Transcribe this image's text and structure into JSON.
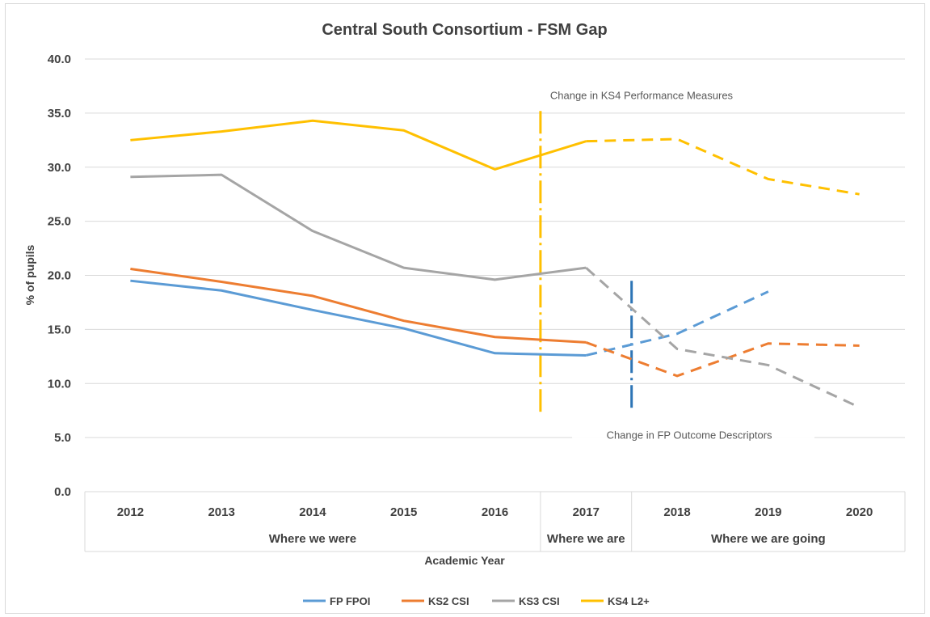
{
  "chart_data": {
    "type": "line",
    "title": "Central South Consortium - FSM Gap",
    "xlabel": "Academic Year",
    "ylabel": "% of pupils",
    "ylim": [
      0,
      40
    ],
    "y_ticks": [
      "0.0",
      "5.0",
      "10.0",
      "15.0",
      "20.0",
      "25.0",
      "30.0",
      "35.0",
      "40.0"
    ],
    "categories": [
      "2012",
      "2013",
      "2014",
      "2015",
      "2016",
      "2017",
      "2018",
      "2019",
      "2020"
    ],
    "category_groups": [
      {
        "label": "Where we were",
        "categories": [
          "2012",
          "2013",
          "2014",
          "2015",
          "2016"
        ]
      },
      {
        "label": "Where we are",
        "categories": [
          "2017"
        ]
      },
      {
        "label": "Where we are going",
        "categories": [
          "2018",
          "2019",
          "2020"
        ]
      }
    ],
    "grid": true,
    "legend_position": "bottom",
    "series": [
      {
        "name": "FP FPOI",
        "color": "#5b9bd5",
        "values": [
          19.5,
          18.6,
          16.8,
          15.1,
          12.8,
          12.6,
          14.6,
          18.5,
          null
        ],
        "solid_until": "2017",
        "dashed_from": "2017"
      },
      {
        "name": "KS2 CSI",
        "color": "#ed7d31",
        "values": [
          20.6,
          19.4,
          18.1,
          15.8,
          14.3,
          13.8,
          10.7,
          13.7,
          13.5
        ],
        "solid_until": "2017",
        "dashed_from": "2017"
      },
      {
        "name": "KS3 CSI",
        "color": "#a5a5a5",
        "values": [
          29.1,
          29.3,
          24.1,
          20.7,
          19.6,
          20.7,
          13.2,
          11.7,
          7.8
        ],
        "solid_until": "2017",
        "dashed_from": "2017"
      },
      {
        "name": "KS4 L2+",
        "color": "#ffc000",
        "values": [
          32.5,
          33.3,
          34.3,
          33.4,
          29.8,
          32.4,
          32.6,
          28.9,
          27.5
        ],
        "solid_until": "2017",
        "dashed_from": "2017"
      }
    ],
    "annotations": [
      {
        "text": "Change in KS4 Performance Measures",
        "color": "#ffc000",
        "marker_between": [
          "2016",
          "2017"
        ]
      },
      {
        "text": "Change in FP Outcome Descriptors",
        "color": "#2e75b6",
        "marker_between": [
          "2017",
          "2018"
        ]
      }
    ]
  }
}
